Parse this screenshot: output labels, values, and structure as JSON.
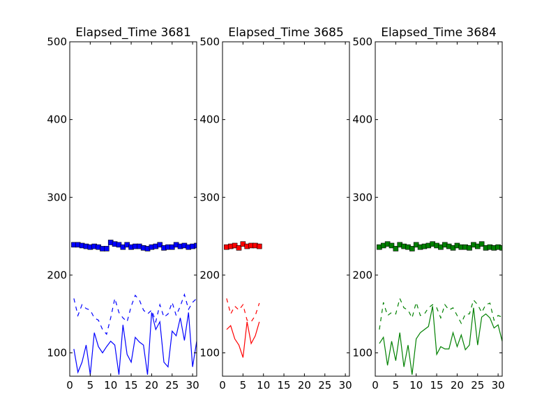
{
  "chart_data": [
    {
      "type": "line",
      "title": "Elapsed_Time 3681",
      "color": "#0000ff",
      "xlim": [
        0,
        31
      ],
      "ylim": [
        70,
        500
      ],
      "xticks": [
        "0",
        "5",
        "10",
        "15",
        "20",
        "25",
        "30"
      ],
      "yticks": [
        "100",
        "200",
        "300",
        "400",
        "500"
      ],
      "series": [
        {
          "style": "square-markers",
          "x": [
            1,
            2,
            3,
            4,
            5,
            6,
            7,
            8,
            9,
            10,
            11,
            12,
            13,
            14,
            15,
            16,
            17,
            18,
            19,
            20,
            21,
            22,
            23,
            24,
            25,
            26,
            27,
            28,
            29,
            30,
            31
          ],
          "y": [
            239,
            239,
            238,
            237,
            236,
            237,
            236,
            234,
            234,
            242,
            240,
            239,
            236,
            239,
            236,
            237,
            237,
            235,
            234,
            236,
            237,
            239,
            235,
            236,
            236,
            239,
            237,
            238,
            236,
            237,
            238
          ]
        },
        {
          "style": "dashed",
          "x": [
            1,
            2,
            3,
            4,
            5,
            6,
            7,
            8,
            9,
            10,
            11,
            12,
            13,
            14,
            15,
            16,
            17,
            18,
            19,
            20,
            21,
            22,
            23,
            24,
            25,
            26,
            27,
            28,
            29,
            30,
            31
          ],
          "y": [
            170,
            148,
            162,
            157,
            155,
            145,
            142,
            130,
            124,
            145,
            170,
            152,
            145,
            140,
            160,
            174,
            168,
            155,
            150,
            155,
            140,
            162,
            146,
            150,
            165,
            148,
            160,
            175,
            156,
            165,
            170
          ]
        },
        {
          "style": "solid",
          "x": [
            1,
            2,
            3,
            4,
            5,
            6,
            7,
            8,
            9,
            10,
            11,
            12,
            13,
            14,
            15,
            16,
            17,
            18,
            19,
            20,
            21,
            22,
            23,
            24,
            25,
            26,
            27,
            28,
            29,
            30,
            31
          ],
          "y": [
            105,
            75,
            88,
            110,
            72,
            126,
            108,
            100,
            108,
            115,
            110,
            72,
            136,
            98,
            88,
            120,
            114,
            110,
            72,
            152,
            130,
            140,
            88,
            82,
            128,
            122,
            145,
            116,
            152,
            82,
            115
          ]
        }
      ]
    },
    {
      "type": "line",
      "title": "Elapsed_Time 3685",
      "color": "#ff0000",
      "xlim": [
        0,
        31
      ],
      "ylim": [
        70,
        500
      ],
      "xticks": [
        "0",
        "5",
        "10",
        "15",
        "20",
        "25",
        "30"
      ],
      "yticks": [
        "100",
        "200",
        "300",
        "400",
        "500"
      ],
      "series": [
        {
          "style": "square-markers",
          "x": [
            1,
            2,
            3,
            4,
            5,
            6,
            7,
            8,
            9
          ],
          "y": [
            236,
            237,
            238,
            235,
            240,
            237,
            238,
            238,
            237
          ]
        },
        {
          "style": "dashed",
          "x": [
            1,
            2,
            3,
            4,
            5,
            6,
            7,
            8,
            9
          ],
          "y": [
            170,
            150,
            160,
            155,
            162,
            142,
            140,
            148,
            164
          ]
        },
        {
          "style": "solid",
          "x": [
            1,
            2,
            3,
            4,
            5,
            6,
            7,
            8,
            9
          ],
          "y": [
            130,
            135,
            118,
            110,
            94,
            140,
            112,
            122,
            140
          ]
        }
      ]
    },
    {
      "type": "line",
      "title": "Elapsed_Time 3684",
      "color": "#008000",
      "xlim": [
        0,
        31
      ],
      "ylim": [
        70,
        500
      ],
      "xticks": [
        "0",
        "5",
        "10",
        "15",
        "20",
        "25",
        "30"
      ],
      "yticks": [
        "100",
        "200",
        "300",
        "400",
        "500"
      ],
      "series": [
        {
          "style": "square-markers",
          "x": [
            1,
            2,
            3,
            4,
            5,
            6,
            7,
            8,
            9,
            10,
            11,
            12,
            13,
            14,
            15,
            16,
            17,
            18,
            19,
            20,
            21,
            22,
            23,
            24,
            25,
            26,
            27,
            28,
            29,
            30,
            31
          ],
          "y": [
            236,
            238,
            240,
            238,
            234,
            239,
            237,
            236,
            234,
            239,
            236,
            237,
            238,
            240,
            238,
            236,
            239,
            237,
            235,
            238,
            236,
            236,
            235,
            239,
            237,
            240,
            235,
            236,
            235,
            236,
            235
          ]
        },
        {
          "style": "dashed",
          "x": [
            1,
            2,
            3,
            4,
            5,
            6,
            7,
            8,
            9,
            10,
            11,
            12,
            13,
            14,
            15,
            16,
            17,
            18,
            19,
            20,
            21,
            22,
            23,
            24,
            25,
            26,
            27,
            28,
            29,
            30,
            31
          ],
          "y": [
            130,
            165,
            148,
            152,
            150,
            170,
            158,
            155,
            145,
            165,
            148,
            150,
            158,
            162,
            158,
            145,
            162,
            155,
            158,
            148,
            138,
            150,
            150,
            168,
            162,
            152,
            162,
            164,
            142,
            148,
            146
          ]
        },
        {
          "style": "solid",
          "x": [
            1,
            2,
            3,
            4,
            5,
            6,
            7,
            8,
            9,
            10,
            11,
            12,
            13,
            14,
            15,
            16,
            17,
            18,
            19,
            20,
            21,
            22,
            23,
            24,
            25,
            26,
            27,
            28,
            29,
            30,
            31
          ],
          "y": [
            112,
            120,
            84,
            115,
            90,
            126,
            82,
            110,
            72,
            118,
            126,
            130,
            134,
            160,
            98,
            108,
            105,
            105,
            126,
            108,
            123,
            104,
            110,
            158,
            110,
            146,
            150,
            145,
            132,
            136,
            115
          ]
        }
      ]
    }
  ]
}
